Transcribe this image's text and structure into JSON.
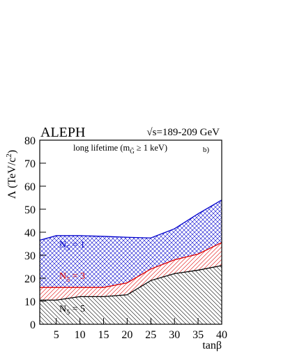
{
  "chart_data": {
    "type": "area",
    "experiment": "ALEPH",
    "energy": "√s=189-209 GeV",
    "note": [
      "long lifetime (m",
      "G̃",
      "≥ 1 keV)"
    ],
    "panel": "b)",
    "y_label": [
      "Λ (TeV/c",
      "2",
      ")"
    ],
    "x_label": "tanβ",
    "x": [
      1.5,
      5,
      10,
      15,
      20,
      25,
      30,
      35,
      40
    ],
    "series": [
      {
        "label": [
          "N",
          "5",
          " = 1"
        ],
        "color": "#0000cc",
        "values": [
          36.5,
          38.5,
          38.5,
          38.2,
          37.8,
          37.5,
          41.5,
          48,
          54
        ]
      },
      {
        "label": [
          "N",
          "5",
          " = 3"
        ],
        "color": "#e00000",
        "values": [
          16,
          16,
          16,
          16,
          18,
          24,
          28,
          30.5,
          35.5
        ]
      },
      {
        "label": [
          "N",
          "5",
          " = 5"
        ],
        "color": "#000000",
        "values": [
          10.5,
          10.5,
          12,
          12,
          12.8,
          19,
          22,
          23.5,
          25.5
        ]
      }
    ],
    "xlim": [
      1.5,
      40
    ],
    "ylim": [
      0,
      80
    ],
    "xticks": [
      5,
      10,
      15,
      20,
      25,
      30,
      35,
      40
    ],
    "yticks": [
      0,
      10,
      20,
      30,
      40,
      50,
      60,
      70,
      80
    ]
  }
}
